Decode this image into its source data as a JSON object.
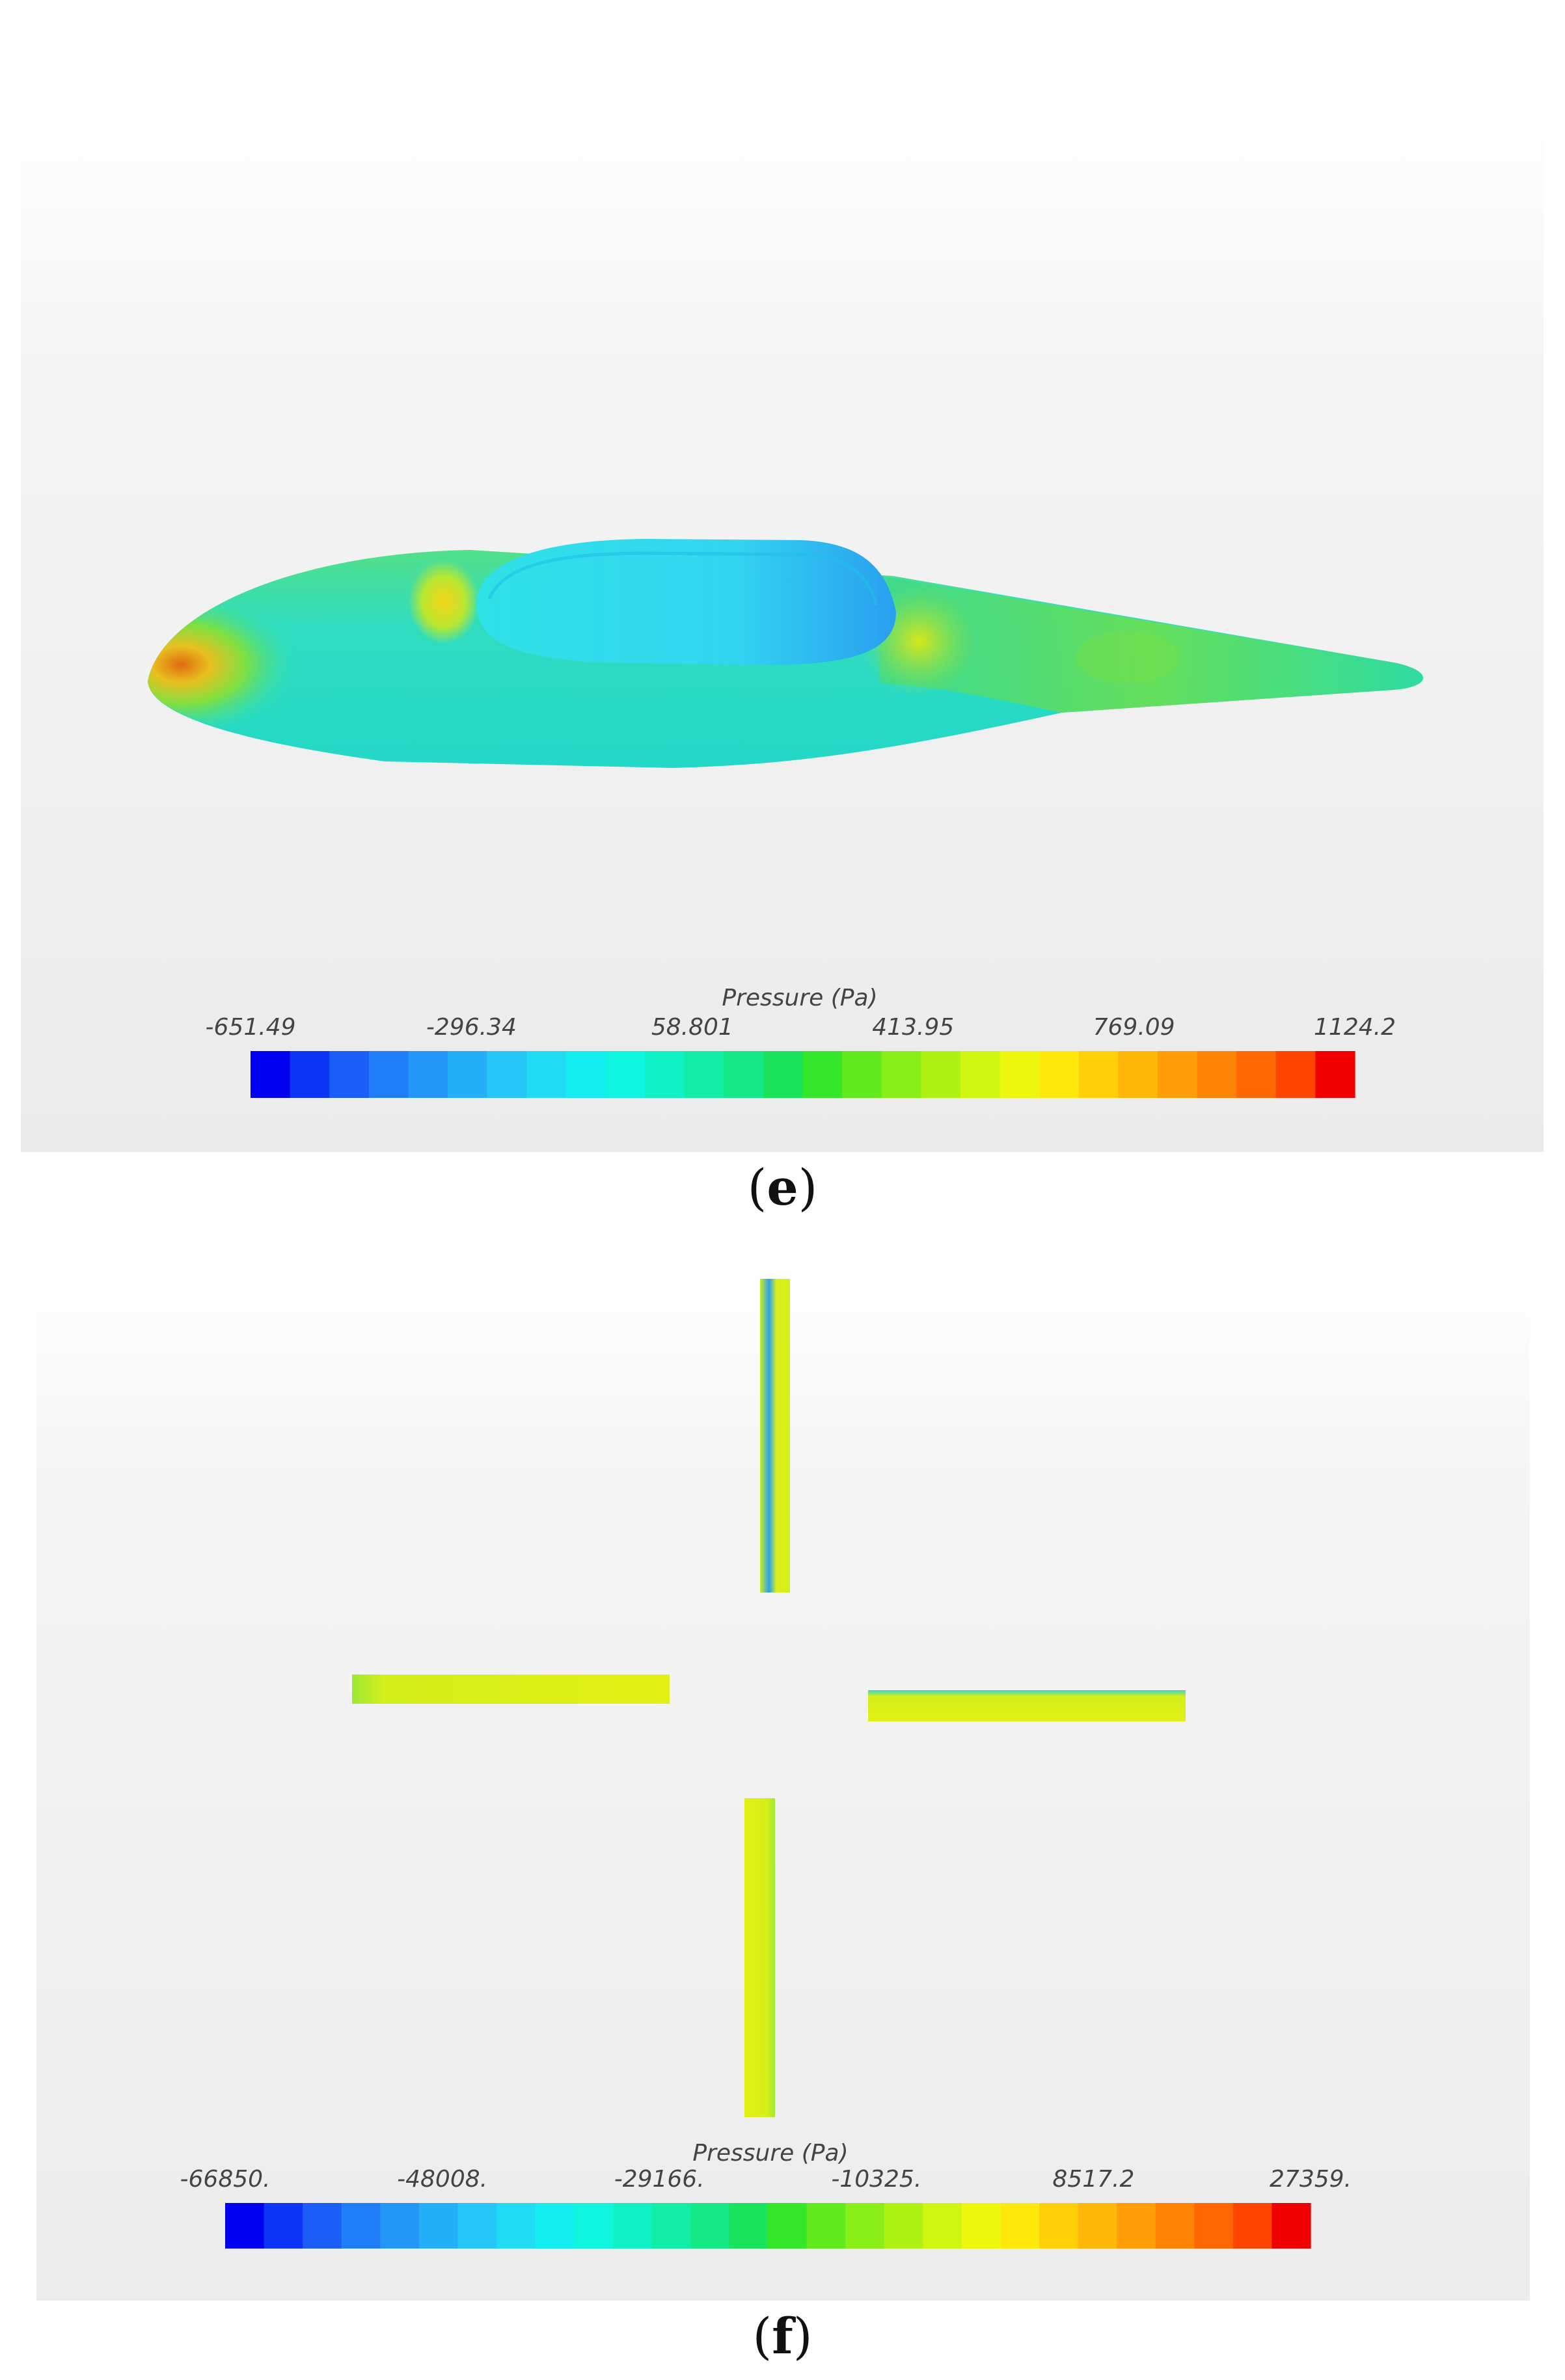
{
  "panel_e": {
    "caption_letter": "e",
    "legend": {
      "title": "Pressure (Pa)",
      "ticks": [
        "-651.49",
        "-296.34",
        "58.801",
        "413.95",
        "769.09",
        "1124.2"
      ]
    }
  },
  "panel_f": {
    "caption_letter": "f",
    "legend": {
      "title": "Pressure (Pa)",
      "ticks": [
        "-66850.",
        "-48008.",
        "-29166.",
        "-10325.",
        "8517.2",
        "27359."
      ]
    }
  },
  "colormap": [
    "#0000f0",
    "#0d35f5",
    "#1a5df7",
    "#1f7df8",
    "#2396f8",
    "#25aff8",
    "#26c6f6",
    "#1fdcf4",
    "#14eef0",
    "#0ff5de",
    "#10f2c6",
    "#12eda6",
    "#15e886",
    "#1ae35c",
    "#35e62a",
    "#62ea1e",
    "#8aee18",
    "#aef214",
    "#cff610",
    "#eef70e",
    "#ffe80c",
    "#ffcf0a",
    "#ffb709",
    "#ff9e08",
    "#ff8406",
    "#ff6604",
    "#ff4402",
    "#f00000"
  ]
}
